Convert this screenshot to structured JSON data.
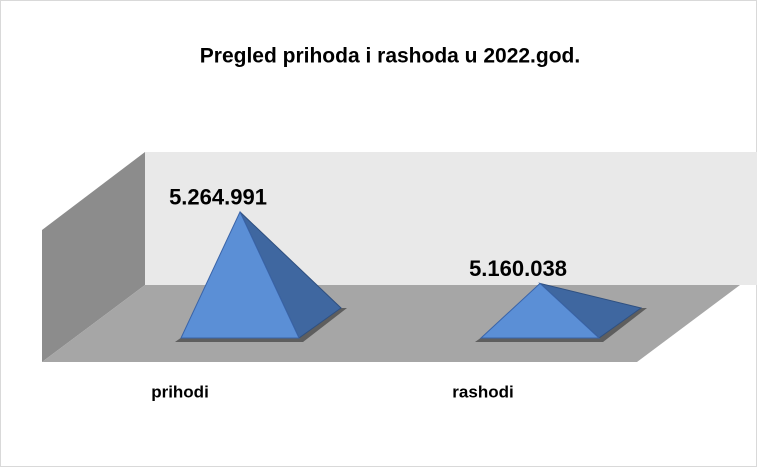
{
  "chart_data": {
    "type": "pyramid3d",
    "title": "Pregled prihoda i rashoda u 2022.god.",
    "categories": [
      "prihodi",
      "rashodi"
    ],
    "values": [
      5264991,
      5160038
    ],
    "value_labels": [
      "5.264.991",
      "5.160.038"
    ],
    "color": "#5b8fd6",
    "ylim": [
      5080000,
      5300000
    ]
  }
}
